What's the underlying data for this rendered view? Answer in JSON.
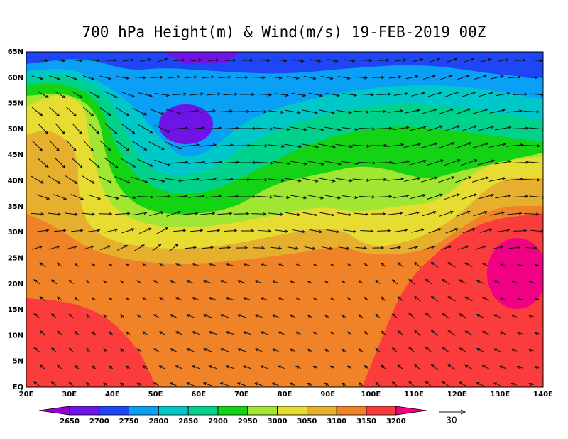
{
  "title": "700 hPa Height(m) & Wind(m/s) 19-FEB-2019 00Z",
  "map": {
    "lat_labels": [
      "EQ",
      "5N",
      "10N",
      "15N",
      "20N",
      "25N",
      "30N",
      "35N",
      "40N",
      "45N",
      "50N",
      "55N",
      "60N",
      "65N"
    ],
    "lon_labels": [
      "20E",
      "30E",
      "40E",
      "50E",
      "60E",
      "70E",
      "80E",
      "90E",
      "100E",
      "110E",
      "120E",
      "130E",
      "140E"
    ]
  },
  "colorbar": {
    "labels": [
      2650,
      2700,
      2750,
      2800,
      2850,
      2900,
      2950,
      3000,
      3050,
      3100,
      3150,
      3200
    ],
    "colors": [
      "#9600d2",
      "#6e14e6",
      "#1e46f5",
      "#0aa0f5",
      "#00c8c8",
      "#00d28c",
      "#14d214",
      "#a0e632",
      "#e6dc32",
      "#e6af2d",
      "#f08228",
      "#fa3c3c",
      "#f00082"
    ]
  },
  "reference_vector": {
    "label": 30
  }
}
